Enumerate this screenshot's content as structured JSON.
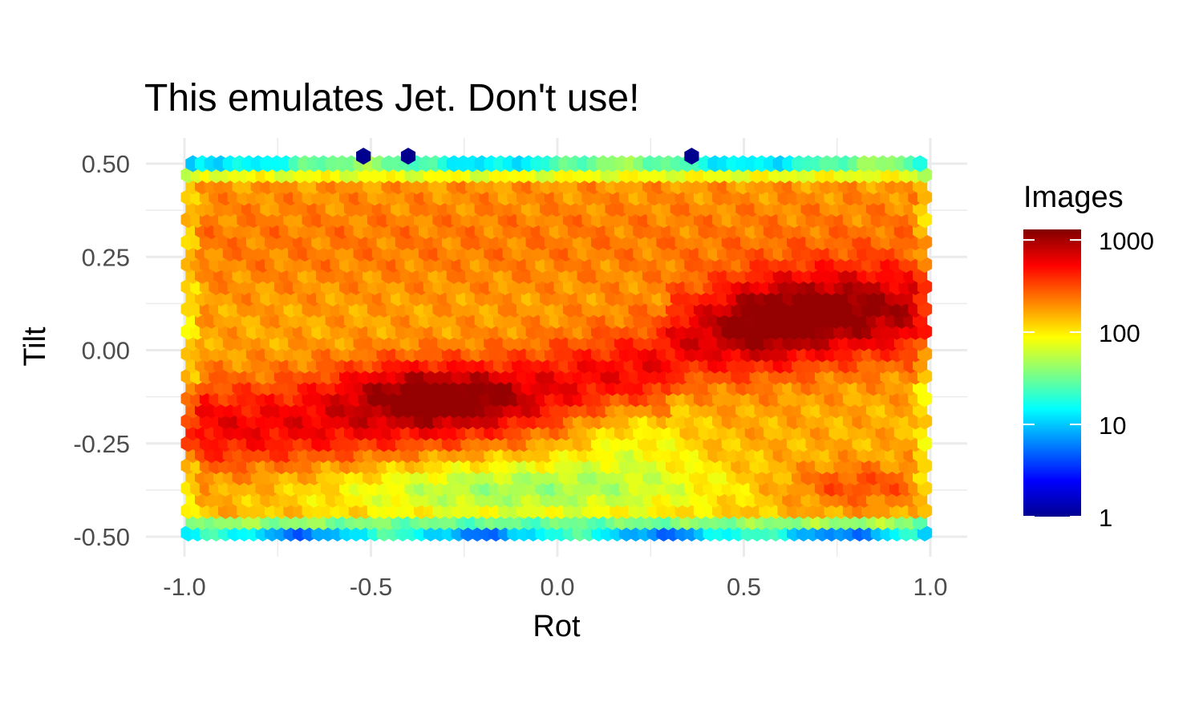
{
  "chart_data": {
    "type": "heatmap",
    "geom": "hexbin",
    "title": "This emulates Jet. Don't use!",
    "xlabel": "Rot",
    "ylabel": "Tilt",
    "xlim": [
      -1.05,
      1.05
    ],
    "ylim": [
      -0.56,
      0.57
    ],
    "x_ticks": [
      -1.0,
      -0.5,
      0.0,
      0.5,
      1.0
    ],
    "x_tick_labels": [
      "-1.0",
      "-0.5",
      "0.0",
      "0.5",
      "1.0"
    ],
    "y_ticks": [
      -0.5,
      -0.25,
      0.0,
      0.25,
      0.5
    ],
    "y_tick_labels": [
      "-0.50",
      "-0.25",
      "0.00",
      "0.25",
      "0.50"
    ],
    "grid": true,
    "bin_width_x": 0.025,
    "bin_rows_y": [
      -0.49,
      -0.46,
      -0.43,
      -0.4,
      -0.37,
      -0.34,
      -0.31,
      -0.28,
      -0.25,
      -0.22,
      -0.19,
      -0.16,
      -0.13,
      -0.1,
      -0.07,
      -0.04,
      -0.01,
      0.02,
      0.05,
      0.08,
      0.11,
      0.14,
      0.17,
      0.2,
      0.23,
      0.26,
      0.29,
      0.32,
      0.35,
      0.38,
      0.41,
      0.44,
      0.47,
      0.5
    ],
    "x_range": [
      -0.99,
      0.995
    ],
    "outlier_points": [
      {
        "x": -0.52,
        "y": 0.52,
        "count": 1
      },
      {
        "x": -0.4,
        "y": 0.52,
        "count": 1
      },
      {
        "x": 0.36,
        "y": 0.52,
        "count": 1
      }
    ],
    "density_blobs": [
      {
        "x": 0.0,
        "y": 0.02,
        "sx": 3.0,
        "sy": 0.06,
        "amp": 1.0,
        "note": "band"
      },
      {
        "x": -0.42,
        "y": -0.1,
        "sx": 0.14,
        "sy": 0.06,
        "amp": 1.0
      },
      {
        "x": -0.25,
        "y": -0.13,
        "sx": 0.12,
        "sy": 0.05,
        "amp": 1.0
      },
      {
        "x": 0.55,
        "y": 0.08,
        "sx": 0.1,
        "sy": 0.08,
        "amp": 1.0
      },
      {
        "x": 0.75,
        "y": 0.12,
        "sx": 0.14,
        "sy": 0.08,
        "amp": 1.0
      },
      {
        "x": 0.8,
        "y": -0.36,
        "sx": 0.14,
        "sy": 0.04,
        "amp": 1.0
      }
    ],
    "legend": {
      "title": "Images",
      "scale": "log10",
      "breaks": [
        1,
        10,
        100,
        1000
      ],
      "break_labels": [
        "1",
        "10",
        "100",
        "1000"
      ],
      "limits": [
        1,
        1300
      ],
      "position": "right",
      "colors": [
        "#00008F",
        "#0000FF",
        "#0080FF",
        "#00FFFF",
        "#80FF80",
        "#FFFF00",
        "#FF8000",
        "#FF0000",
        "#800000"
      ]
    }
  }
}
